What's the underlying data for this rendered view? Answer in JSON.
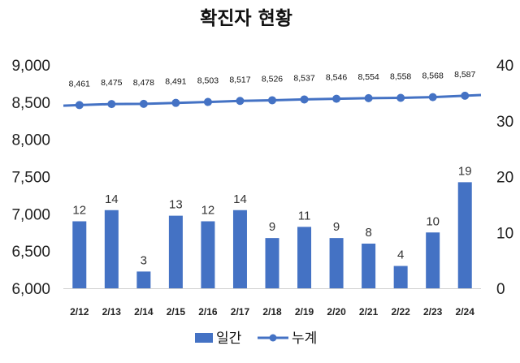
{
  "chart_data": {
    "type": "bar",
    "title": "확진자 현황",
    "categories": [
      "2/12",
      "2/13",
      "2/14",
      "2/15",
      "2/16",
      "2/17",
      "2/18",
      "2/19",
      "2/20",
      "2/21",
      "2/22",
      "2/23",
      "2/24"
    ],
    "series": [
      {
        "name": "일간",
        "type": "bar",
        "axis": "right",
        "values": [
          12,
          14,
          3,
          13,
          12,
          14,
          9,
          11,
          9,
          8,
          4,
          10,
          19
        ],
        "color": "#4472C4"
      },
      {
        "name": "누계",
        "type": "line",
        "axis": "left",
        "values": [
          8461,
          8475,
          8478,
          8491,
          8503,
          8517,
          8526,
          8537,
          8546,
          8554,
          8558,
          8568,
          8587
        ],
        "color": "#4472C4"
      }
    ],
    "y_left": {
      "ylim": [
        6000,
        9000
      ],
      "ticks": [
        "6,000",
        "6,500",
        "7,000",
        "7,500",
        "8,000",
        "8,500",
        "9,000"
      ]
    },
    "y_right": {
      "ylim": [
        0,
        40
      ],
      "ticks": [
        "0",
        "10",
        "20",
        "30",
        "40"
      ]
    },
    "legend": {
      "placement": "bottom",
      "items": [
        "일간",
        "누계"
      ]
    },
    "grid": false
  }
}
